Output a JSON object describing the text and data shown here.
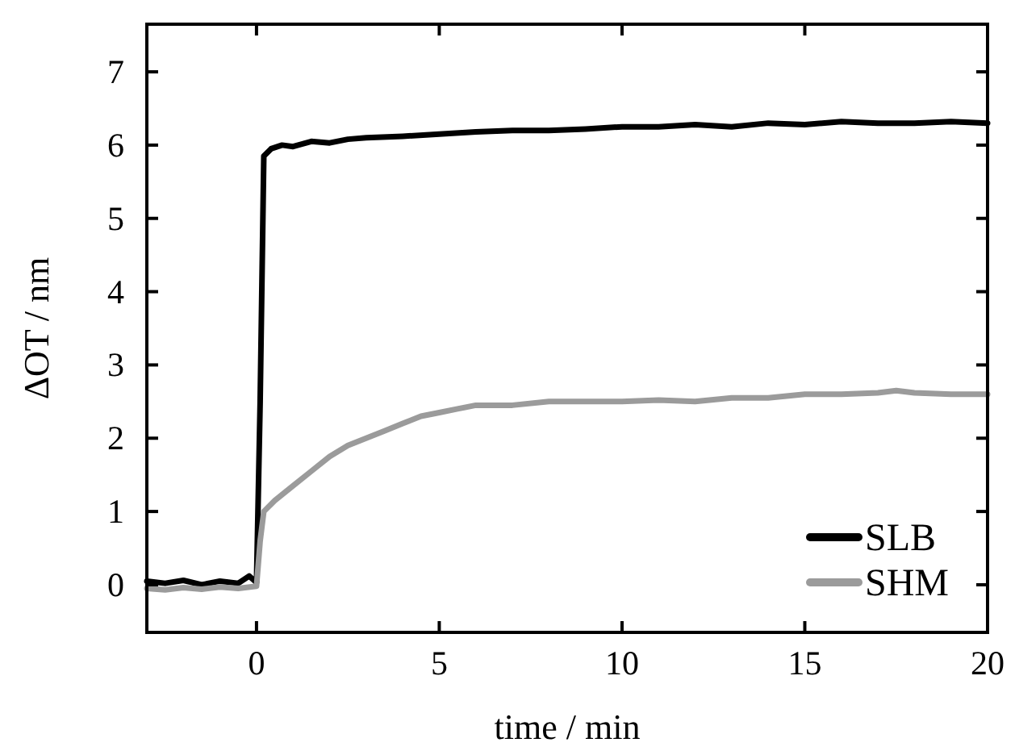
{
  "chart_data": {
    "type": "line",
    "xlabel": "time / min",
    "ylabel": "ΔOT / nm",
    "xlim": [
      -3,
      20
    ],
    "xticks": [
      0,
      5,
      10,
      15,
      20
    ],
    "ylim": [
      -0.65,
      7.65
    ],
    "yticks": [
      0,
      1,
      2,
      3,
      4,
      5,
      6,
      7
    ],
    "legend": "bottom right",
    "grid": false,
    "marker": "none",
    "line_style": "solid",
    "series": [
      {
        "name": "SLB",
        "color": "#000000",
        "x": [
          -3,
          -2.5,
          -2,
          -1.5,
          -1,
          -0.5,
          -0.2,
          0,
          0.1,
          0.2,
          0.4,
          0.7,
          1,
          1.5,
          2,
          2.5,
          3,
          4,
          5,
          6,
          7,
          8,
          9,
          10,
          11,
          12,
          13,
          14,
          15,
          16,
          17,
          18,
          19,
          20
        ],
        "values": [
          0.05,
          0.02,
          0.06,
          0.0,
          0.05,
          0.02,
          0.12,
          0.03,
          2.5,
          5.85,
          5.95,
          6.0,
          5.98,
          6.05,
          6.03,
          6.08,
          6.1,
          6.12,
          6.15,
          6.18,
          6.2,
          6.2,
          6.22,
          6.25,
          6.25,
          6.28,
          6.25,
          6.3,
          6.28,
          6.32,
          6.3,
          6.3,
          6.32,
          6.3
        ]
      },
      {
        "name": "SHM",
        "color": "#9b9b9b",
        "x": [
          -3,
          -2.5,
          -2,
          -1.5,
          -1,
          -0.5,
          0,
          0.1,
          0.2,
          0.5,
          1,
          1.5,
          2,
          2.5,
          3,
          3.5,
          4,
          4.5,
          5,
          5.5,
          6,
          7,
          8,
          9,
          10,
          11,
          12,
          13,
          14,
          15,
          16,
          17,
          17.5,
          18,
          19,
          20
        ],
        "values": [
          -0.05,
          -0.07,
          -0.04,
          -0.06,
          -0.03,
          -0.05,
          -0.02,
          0.6,
          1.0,
          1.15,
          1.35,
          1.55,
          1.75,
          1.9,
          2.0,
          2.1,
          2.2,
          2.3,
          2.35,
          2.4,
          2.45,
          2.45,
          2.5,
          2.5,
          2.5,
          2.52,
          2.5,
          2.55,
          2.55,
          2.6,
          2.6,
          2.62,
          2.65,
          2.62,
          2.6,
          2.6
        ]
      }
    ]
  }
}
